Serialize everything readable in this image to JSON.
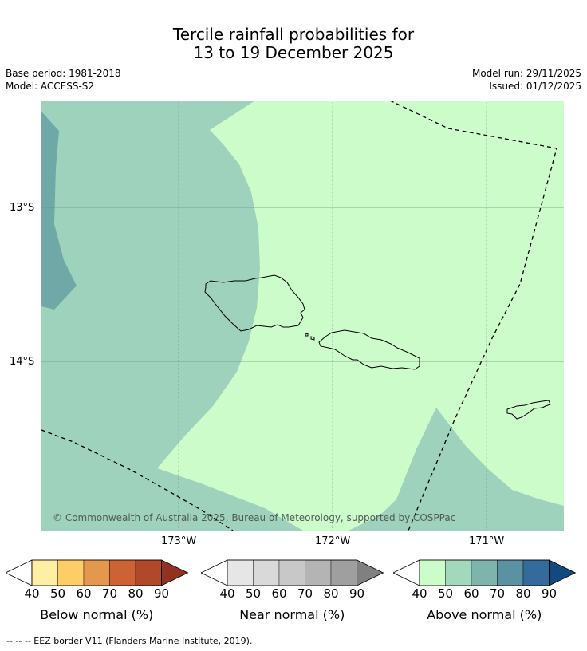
{
  "title": {
    "line1": "Tercile rainfall probabilities for",
    "line2": "13 to 19 December 2025"
  },
  "meta": {
    "base_period": "Base period: 1981-2018",
    "model": "Model: ACCESS-S2",
    "model_run": "Model run: 29/11/2025",
    "issued": "Issued: 01/12/2025"
  },
  "map": {
    "lat_labels": [
      "13°S",
      "14°S"
    ],
    "lon_labels": [
      "173°W",
      "172°W",
      "171°W"
    ],
    "copyright": "© Commonwealth of Australia 2025, Bureau of Meteorology, supported by COSPPac",
    "colors": {
      "above_50": "#cdfccb",
      "above_60": "#9fd2bc",
      "above_70": "#70a8a8",
      "grid": "#6f8f80",
      "coast": "#000000",
      "eez": "#000000"
    }
  },
  "colorbars": [
    {
      "name": "below-normal",
      "label": "Below normal (%)",
      "ticks": [
        "40",
        "50",
        "60",
        "70",
        "80",
        "90"
      ],
      "colors": [
        "#ffffff",
        "#ffefa5",
        "#ffcd66",
        "#e3984d",
        "#cd6335",
        "#b04929",
        "#923022"
      ]
    },
    {
      "name": "near-normal",
      "label": "Near normal (%)",
      "ticks": [
        "40",
        "50",
        "60",
        "70",
        "80",
        "90"
      ],
      "colors": [
        "#ffffff",
        "#e6e6e6",
        "#d9d9d9",
        "#c8c8c8",
        "#b4b4b4",
        "#9f9f9f",
        "#808080"
      ]
    },
    {
      "name": "above-normal",
      "label": "Above normal (%)",
      "ticks": [
        "40",
        "50",
        "60",
        "70",
        "80",
        "90"
      ],
      "colors": [
        "#ffffff",
        "#cdfccb",
        "#a2d9bc",
        "#7db4ac",
        "#5a92a3",
        "#336b9a",
        "#124a80"
      ]
    }
  ],
  "footer": "--  --  -- EEZ border V11 (Flanders Marine Institute, 2019)."
}
